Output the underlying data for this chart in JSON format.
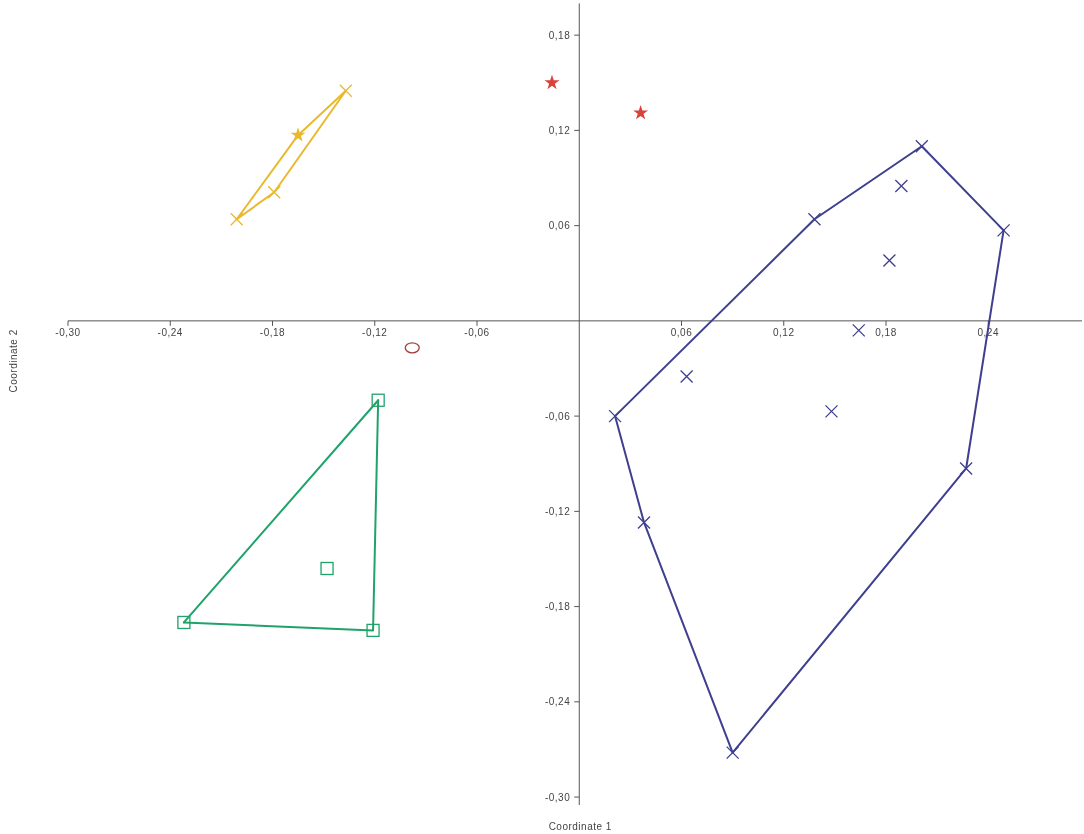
{
  "chart_data": {
    "type": "scatter",
    "xlabel": "Coordinate 1",
    "ylabel": "Coordinate 2",
    "xlim": [
      -0.3,
      0.295
    ],
    "ylim": [
      -0.305,
      0.2
    ],
    "xticks": [
      {
        "value": -0.3,
        "label": "-0,30"
      },
      {
        "value": -0.24,
        "label": "-0,24"
      },
      {
        "value": -0.18,
        "label": "-0,18"
      },
      {
        "value": -0.12,
        "label": "-0,12"
      },
      {
        "value": -0.06,
        "label": "-0,06"
      },
      {
        "value": 0.06,
        "label": "0,06"
      },
      {
        "value": 0.12,
        "label": "0,12"
      },
      {
        "value": 0.18,
        "label": "0,18"
      },
      {
        "value": 0.24,
        "label": "0,24"
      }
    ],
    "yticks": [
      {
        "value": 0.18,
        "label": "0,18"
      },
      {
        "value": 0.12,
        "label": "0,12"
      },
      {
        "value": 0.06,
        "label": "0,06"
      },
      {
        "value": -0.06,
        "label": "-0,06"
      },
      {
        "value": -0.12,
        "label": "-0,12"
      },
      {
        "value": -0.18,
        "label": "-0,18"
      },
      {
        "value": -0.24,
        "label": "-0,24"
      },
      {
        "value": -0.3,
        "label": "-0,30"
      }
    ],
    "series": [
      {
        "type": "line",
        "color": "#e8b92f",
        "marker": "none",
        "line_style": "solid",
        "x": [
          -0.201,
          -0.165,
          -0.137
        ],
        "values": [
          0.064,
          0.117,
          0.145
        ]
      },
      {
        "type": "line",
        "color": "#e8b92f",
        "marker": "none",
        "line_style": "solid",
        "x": [
          -0.201,
          -0.179,
          -0.137
        ],
        "values": [
          0.064,
          0.081,
          0.145
        ]
      },
      {
        "type": "line",
        "color": "#1fa36a",
        "marker": "none",
        "line_style": "solid",
        "x": [
          -0.232,
          -0.118
        ],
        "values": [
          -0.19,
          -0.05
        ]
      },
      {
        "type": "line",
        "color": "#1fa36a",
        "marker": "none",
        "line_style": "solid",
        "x": [
          -0.232,
          -0.121,
          -0.118
        ],
        "values": [
          -0.19,
          -0.195,
          -0.05
        ]
      },
      {
        "type": "line",
        "color": "#3f3f8f",
        "marker": "none",
        "line_style": "solid",
        "x": [
          0.021,
          0.138,
          0.201,
          0.249
        ],
        "values": [
          -0.06,
          0.064,
          0.11,
          0.057
        ]
      },
      {
        "type": "line",
        "color": "#3f3f8f",
        "marker": "none",
        "line_style": "solid",
        "x": [
          0.021,
          0.038,
          0.09,
          0.227,
          0.249
        ],
        "values": [
          -0.06,
          -0.127,
          -0.272,
          -0.093,
          0.057
        ]
      },
      {
        "color": "#e8b92f",
        "marker": "cross",
        "x": [
          -0.201,
          -0.179,
          -0.137
        ],
        "values": [
          0.064,
          0.081,
          0.145
        ]
      },
      {
        "color": "#e8b92f",
        "marker": "star",
        "x": [
          -0.165
        ],
        "values": [
          0.117
        ]
      },
      {
        "color": "#d9413b",
        "marker": "star",
        "x": [
          -0.016,
          0.036
        ],
        "values": [
          0.15,
          0.131
        ]
      },
      {
        "color": "#a0413c",
        "marker": "circle",
        "x": [
          -0.098
        ],
        "values": [
          -0.017
        ]
      },
      {
        "color": "#1fa36a",
        "marker": "square",
        "x": [
          -0.118,
          -0.148,
          -0.232,
          -0.121
        ],
        "values": [
          -0.05,
          -0.156,
          -0.19,
          -0.195
        ]
      },
      {
        "color": "#3f3f8f",
        "marker": "cross",
        "x": [
          0.021,
          0.038,
          0.09,
          0.227,
          0.249,
          0.201,
          0.138,
          0.189,
          0.182,
          0.164,
          0.063,
          0.148
        ],
        "values": [
          -0.06,
          -0.127,
          -0.272,
          -0.093,
          0.057,
          0.11,
          0.064,
          0.085,
          0.038,
          -0.006,
          -0.035,
          -0.057
        ]
      }
    ]
  }
}
